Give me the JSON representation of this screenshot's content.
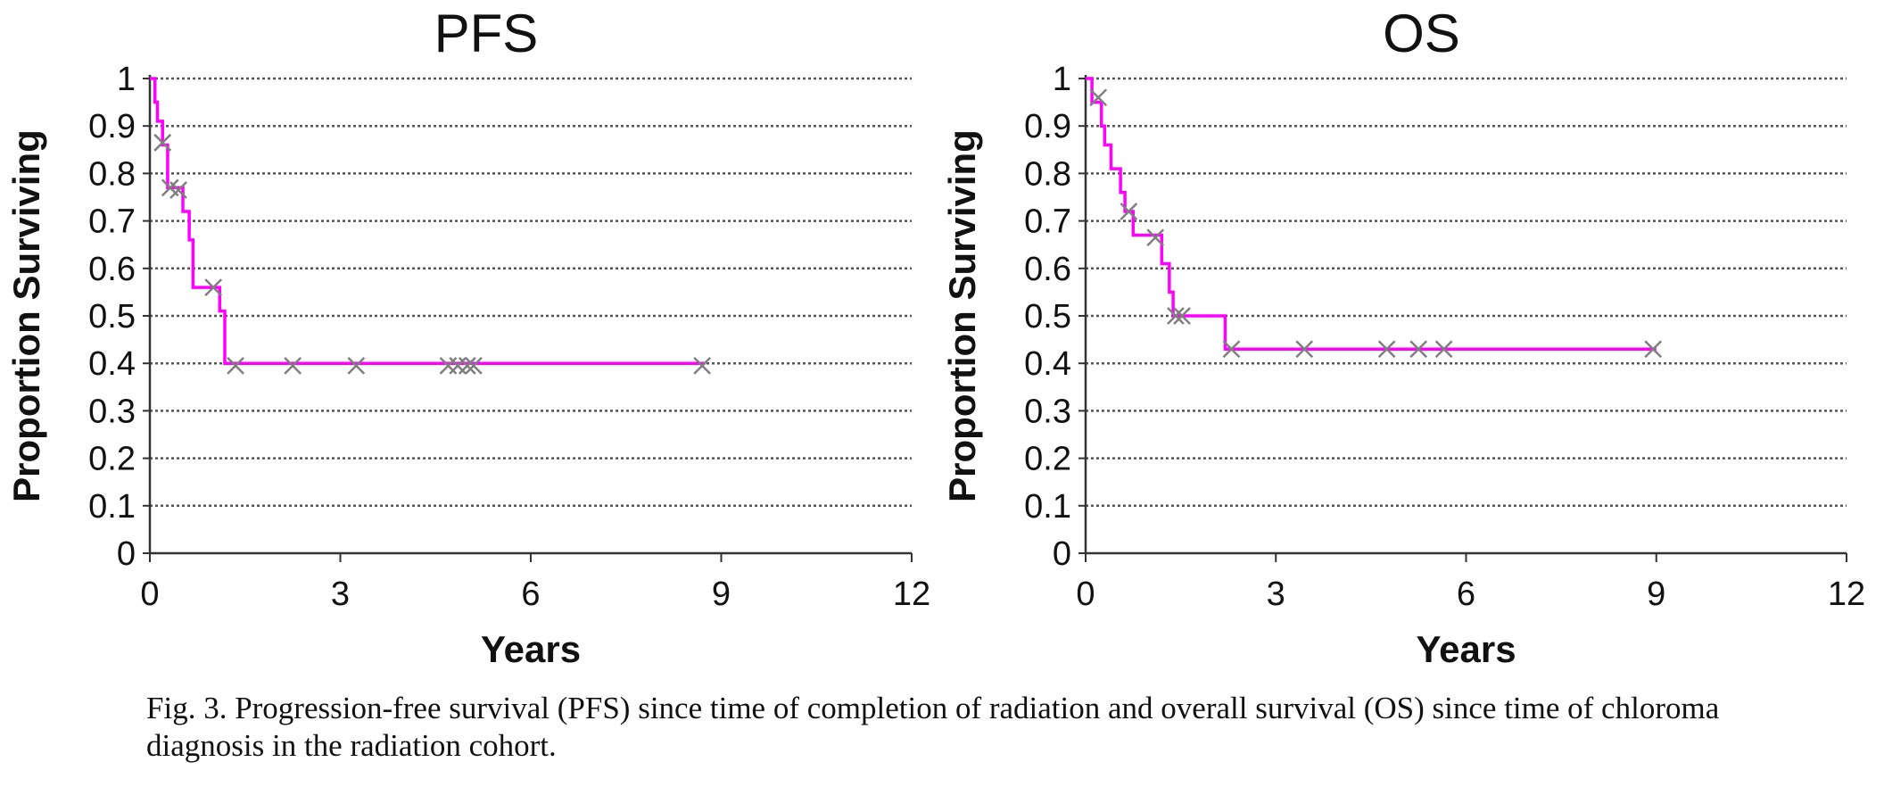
{
  "chart_data": [
    {
      "type": "line",
      "title": "PFS",
      "xlabel": "Years",
      "ylabel": "Proportion Surviving",
      "xlim": [
        0,
        12
      ],
      "ylim": [
        0,
        1
      ],
      "xticks": [
        "0",
        "3",
        "6",
        "9",
        "12"
      ],
      "yticks": [
        "0",
        "0.1",
        "0.2",
        "0.3",
        "0.4",
        "0.5",
        "0.6",
        "0.7",
        "0.8",
        "0.9",
        "1"
      ],
      "grid": "horizontal dotted",
      "line_color": "#ff00ff",
      "marker_color": "#7f7f7f",
      "series": [
        {
          "step_curve": [
            [
              0,
              1.0
            ],
            [
              0.08,
              0.95
            ],
            [
              0.12,
              0.91
            ],
            [
              0.2,
              0.86
            ],
            [
              0.28,
              0.77
            ],
            [
              0.52,
              0.72
            ],
            [
              0.62,
              0.66
            ],
            [
              0.68,
              0.56
            ],
            [
              1.05,
              0.56
            ],
            [
              1.1,
              0.51
            ],
            [
              1.18,
              0.4
            ],
            [
              8.75,
              0.4
            ]
          ],
          "censored": [
            [
              0.2,
              0.865
            ],
            [
              0.32,
              0.77
            ],
            [
              0.45,
              0.765
            ],
            [
              1.0,
              0.56
            ],
            [
              1.35,
              0.395
            ],
            [
              2.25,
              0.395
            ],
            [
              3.25,
              0.395
            ],
            [
              4.7,
              0.395
            ],
            [
              4.85,
              0.395
            ],
            [
              5.0,
              0.395
            ],
            [
              5.1,
              0.395
            ],
            [
              8.7,
              0.395
            ]
          ]
        }
      ]
    },
    {
      "type": "line",
      "title": "OS",
      "xlabel": "Years",
      "ylabel": "Proportion Surviving",
      "xlim": [
        0,
        12
      ],
      "ylim": [
        0,
        1
      ],
      "xticks": [
        "0",
        "3",
        "6",
        "9",
        "12"
      ],
      "yticks": [
        "0",
        "0.1",
        "0.2",
        "0.3",
        "0.4",
        "0.5",
        "0.6",
        "0.7",
        "0.8",
        "0.9",
        "1"
      ],
      "grid": "horizontal dotted",
      "line_color": "#ff00ff",
      "marker_color": "#7f7f7f",
      "series": [
        {
          "step_curve": [
            [
              0,
              1.0
            ],
            [
              0.1,
              0.95
            ],
            [
              0.25,
              0.9
            ],
            [
              0.3,
              0.86
            ],
            [
              0.4,
              0.81
            ],
            [
              0.55,
              0.76
            ],
            [
              0.62,
              0.72
            ],
            [
              0.75,
              0.67
            ],
            [
              1.1,
              0.67
            ],
            [
              1.2,
              0.61
            ],
            [
              1.32,
              0.55
            ],
            [
              1.38,
              0.5
            ],
            [
              2.15,
              0.5
            ],
            [
              2.2,
              0.43
            ],
            [
              9.0,
              0.43
            ]
          ],
          "censored": [
            [
              0.2,
              0.96
            ],
            [
              0.68,
              0.72
            ],
            [
              1.1,
              0.665
            ],
            [
              1.42,
              0.5
            ],
            [
              1.52,
              0.5
            ],
            [
              2.3,
              0.43
            ],
            [
              3.45,
              0.43
            ],
            [
              4.75,
              0.43
            ],
            [
              5.25,
              0.43
            ],
            [
              5.65,
              0.43
            ],
            [
              8.95,
              0.43
            ]
          ]
        }
      ]
    }
  ],
  "caption": "Fig. 3.  Progression-free survival (PFS) since time of completion of radiation and overall survival (OS) since time of chloroma diagnosis in the radiation cohort."
}
